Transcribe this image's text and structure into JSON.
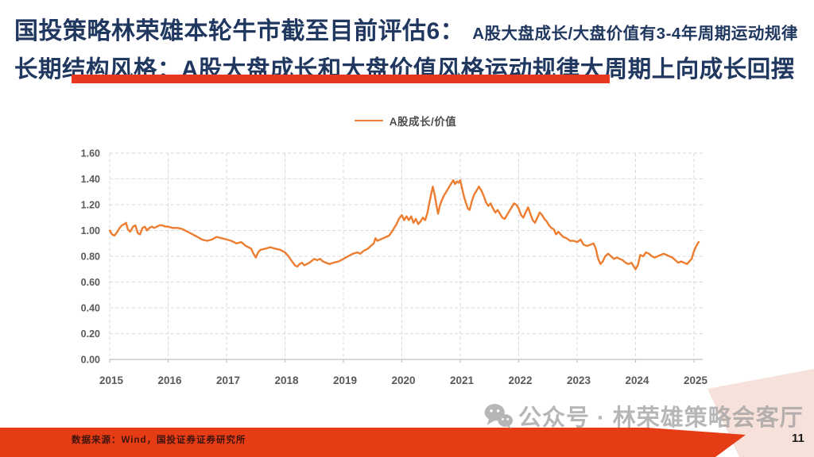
{
  "slide": {
    "title_line1_main": "国投策略林荣雄本轮牛市截至目前评估6：",
    "title_line1_sub": "A股大盘成长/大盘价值有3-4年周期运动规律",
    "title_line2": "长期结构风格：A股大盘成长和大盘价值风格运动规律大周期上向成长回摆",
    "footer_source": "数据来源：Wind，国投证券证券研究所",
    "watermark_text": "公众号 · 林荣雄策略会客厅",
    "page_number": "11",
    "colors": {
      "title_navy": "#20375F",
      "accent_red": "#E7371C",
      "footer_red": "#E63C16",
      "corner_pink": "#F6E2DB",
      "line_orange": "#ED7D31",
      "grid_gray": "#D9D9D9",
      "axis_gray": "#BFBFBF",
      "axis_label_gray": "#595959",
      "watermark_gray": "#9B9B9B"
    }
  },
  "chart_data": {
    "type": "line",
    "title": "",
    "xlabel": "",
    "ylabel": "",
    "grid": "dashed",
    "legend_position": "top-center",
    "legend": [
      {
        "label": "A股成长/价值",
        "color": "#ED7D31"
      }
    ],
    "xlim": [
      2015,
      2025
    ],
    "ylim": [
      0,
      1.6
    ],
    "x_ticks": [
      2015,
      2016,
      2017,
      2018,
      2019,
      2020,
      2021,
      2022,
      2023,
      2024,
      2025
    ],
    "y_ticks": [
      0,
      0.2,
      0.4,
      0.6,
      0.8,
      1.0,
      1.2,
      1.4,
      1.6
    ],
    "y_tick_format": "0.00",
    "series": [
      {
        "name": "A股成长/价值",
        "color": "#ED7D31",
        "points": [
          [
            2015.0,
            1.0
          ],
          [
            2015.04,
            0.97
          ],
          [
            2015.08,
            0.96
          ],
          [
            2015.13,
            0.99
          ],
          [
            2015.17,
            1.02
          ],
          [
            2015.21,
            1.04
          ],
          [
            2015.25,
            1.05
          ],
          [
            2015.28,
            1.06
          ],
          [
            2015.31,
            1.01
          ],
          [
            2015.35,
            0.99
          ],
          [
            2015.4,
            1.03
          ],
          [
            2015.44,
            1.04
          ],
          [
            2015.48,
            0.98
          ],
          [
            2015.52,
            0.97
          ],
          [
            2015.56,
            1.02
          ],
          [
            2015.6,
            1.03
          ],
          [
            2015.64,
            1.0
          ],
          [
            2015.68,
            1.02
          ],
          [
            2015.72,
            1.03
          ],
          [
            2015.76,
            1.02
          ],
          [
            2015.81,
            1.03
          ],
          [
            2015.85,
            1.04
          ],
          [
            2015.9,
            1.04
          ],
          [
            2015.95,
            1.03
          ],
          [
            2016.0,
            1.03
          ],
          [
            2016.08,
            1.02
          ],
          [
            2016.17,
            1.02
          ],
          [
            2016.25,
            1.01
          ],
          [
            2016.33,
            0.99
          ],
          [
            2016.42,
            0.97
          ],
          [
            2016.5,
            0.95
          ],
          [
            2016.58,
            0.93
          ],
          [
            2016.67,
            0.92
          ],
          [
            2016.75,
            0.93
          ],
          [
            2016.83,
            0.95
          ],
          [
            2016.92,
            0.94
          ],
          [
            2017.0,
            0.93
          ],
          [
            2017.08,
            0.92
          ],
          [
            2017.17,
            0.9
          ],
          [
            2017.25,
            0.91
          ],
          [
            2017.33,
            0.88
          ],
          [
            2017.42,
            0.86
          ],
          [
            2017.46,
            0.82
          ],
          [
            2017.5,
            0.79
          ],
          [
            2017.54,
            0.83
          ],
          [
            2017.58,
            0.85
          ],
          [
            2017.67,
            0.86
          ],
          [
            2017.75,
            0.87
          ],
          [
            2017.83,
            0.86
          ],
          [
            2017.92,
            0.85
          ],
          [
            2018.0,
            0.83
          ],
          [
            2018.06,
            0.8
          ],
          [
            2018.12,
            0.76
          ],
          [
            2018.17,
            0.73
          ],
          [
            2018.21,
            0.72
          ],
          [
            2018.25,
            0.74
          ],
          [
            2018.29,
            0.75
          ],
          [
            2018.33,
            0.73
          ],
          [
            2018.42,
            0.75
          ],
          [
            2018.5,
            0.78
          ],
          [
            2018.55,
            0.77
          ],
          [
            2018.6,
            0.78
          ],
          [
            2018.65,
            0.76
          ],
          [
            2018.7,
            0.75
          ],
          [
            2018.76,
            0.74
          ],
          [
            2018.83,
            0.75
          ],
          [
            2018.92,
            0.76
          ],
          [
            2019.0,
            0.78
          ],
          [
            2019.08,
            0.8
          ],
          [
            2019.16,
            0.82
          ],
          [
            2019.24,
            0.83
          ],
          [
            2019.29,
            0.82
          ],
          [
            2019.34,
            0.84
          ],
          [
            2019.42,
            0.86
          ],
          [
            2019.47,
            0.88
          ],
          [
            2019.52,
            0.9
          ],
          [
            2019.55,
            0.94
          ],
          [
            2019.58,
            0.92
          ],
          [
            2019.63,
            0.93
          ],
          [
            2019.68,
            0.94
          ],
          [
            2019.73,
            0.95
          ],
          [
            2019.78,
            0.96
          ],
          [
            2019.83,
            0.99
          ],
          [
            2019.87,
            1.02
          ],
          [
            2019.91,
            1.05
          ],
          [
            2019.95,
            1.09
          ],
          [
            2020.0,
            1.12
          ],
          [
            2020.04,
            1.08
          ],
          [
            2020.08,
            1.11
          ],
          [
            2020.12,
            1.08
          ],
          [
            2020.16,
            1.11
          ],
          [
            2020.2,
            1.06
          ],
          [
            2020.24,
            1.09
          ],
          [
            2020.28,
            1.05
          ],
          [
            2020.32,
            1.07
          ],
          [
            2020.36,
            1.1
          ],
          [
            2020.4,
            1.08
          ],
          [
            2020.44,
            1.14
          ],
          [
            2020.47,
            1.21
          ],
          [
            2020.5,
            1.28
          ],
          [
            2020.53,
            1.34
          ],
          [
            2020.56,
            1.28
          ],
          [
            2020.59,
            1.2
          ],
          [
            2020.62,
            1.13
          ],
          [
            2020.65,
            1.19
          ],
          [
            2020.68,
            1.23
          ],
          [
            2020.72,
            1.27
          ],
          [
            2020.76,
            1.3
          ],
          [
            2020.8,
            1.33
          ],
          [
            2020.84,
            1.36
          ],
          [
            2020.88,
            1.39
          ],
          [
            2020.91,
            1.36
          ],
          [
            2020.94,
            1.38
          ],
          [
            2020.97,
            1.37
          ],
          [
            2021.0,
            1.39
          ],
          [
            2021.03,
            1.33
          ],
          [
            2021.06,
            1.27
          ],
          [
            2021.1,
            1.21
          ],
          [
            2021.13,
            1.17
          ],
          [
            2021.16,
            1.16
          ],
          [
            2021.2,
            1.23
          ],
          [
            2021.24,
            1.28
          ],
          [
            2021.28,
            1.31
          ],
          [
            2021.32,
            1.34
          ],
          [
            2021.36,
            1.31
          ],
          [
            2021.4,
            1.27
          ],
          [
            2021.44,
            1.22
          ],
          [
            2021.48,
            1.19
          ],
          [
            2021.52,
            1.21
          ],
          [
            2021.56,
            1.17
          ],
          [
            2021.6,
            1.14
          ],
          [
            2021.64,
            1.16
          ],
          [
            2021.68,
            1.13
          ],
          [
            2021.72,
            1.1
          ],
          [
            2021.76,
            1.09
          ],
          [
            2021.8,
            1.12
          ],
          [
            2021.84,
            1.15
          ],
          [
            2021.88,
            1.18
          ],
          [
            2021.92,
            1.21
          ],
          [
            2021.96,
            1.2
          ],
          [
            2022.0,
            1.17
          ],
          [
            2022.04,
            1.12
          ],
          [
            2022.08,
            1.1
          ],
          [
            2022.12,
            1.14
          ],
          [
            2022.16,
            1.18
          ],
          [
            2022.2,
            1.13
          ],
          [
            2022.24,
            1.08
          ],
          [
            2022.28,
            1.06
          ],
          [
            2022.32,
            1.1
          ],
          [
            2022.36,
            1.14
          ],
          [
            2022.4,
            1.12
          ],
          [
            2022.44,
            1.09
          ],
          [
            2022.48,
            1.07
          ],
          [
            2022.52,
            1.04
          ],
          [
            2022.56,
            1.02
          ],
          [
            2022.6,
            1.01
          ],
          [
            2022.64,
            0.97
          ],
          [
            2022.68,
            0.99
          ],
          [
            2022.72,
            0.97
          ],
          [
            2022.76,
            0.95
          ],
          [
            2022.82,
            0.94
          ],
          [
            2022.88,
            0.92
          ],
          [
            2022.94,
            0.92
          ],
          [
            2023.0,
            0.91
          ],
          [
            2023.06,
            0.93
          ],
          [
            2023.11,
            0.89
          ],
          [
            2023.17,
            0.88
          ],
          [
            2023.23,
            0.89
          ],
          [
            2023.28,
            0.9
          ],
          [
            2023.32,
            0.86
          ],
          [
            2023.36,
            0.78
          ],
          [
            2023.4,
            0.74
          ],
          [
            2023.44,
            0.76
          ],
          [
            2023.48,
            0.8
          ],
          [
            2023.53,
            0.82
          ],
          [
            2023.58,
            0.8
          ],
          [
            2023.63,
            0.78
          ],
          [
            2023.68,
            0.79
          ],
          [
            2023.73,
            0.78
          ],
          [
            2023.78,
            0.77
          ],
          [
            2023.83,
            0.75
          ],
          [
            2023.88,
            0.74
          ],
          [
            2023.93,
            0.75
          ],
          [
            2023.97,
            0.72
          ],
          [
            2024.0,
            0.7
          ],
          [
            2024.04,
            0.73
          ],
          [
            2024.08,
            0.81
          ],
          [
            2024.13,
            0.8
          ],
          [
            2024.18,
            0.83
          ],
          [
            2024.23,
            0.82
          ],
          [
            2024.28,
            0.8
          ],
          [
            2024.33,
            0.79
          ],
          [
            2024.38,
            0.8
          ],
          [
            2024.43,
            0.81
          ],
          [
            2024.48,
            0.82
          ],
          [
            2024.53,
            0.81
          ],
          [
            2024.58,
            0.8
          ],
          [
            2024.63,
            0.79
          ],
          [
            2024.68,
            0.77
          ],
          [
            2024.73,
            0.75
          ],
          [
            2024.78,
            0.76
          ],
          [
            2024.83,
            0.75
          ],
          [
            2024.88,
            0.74
          ],
          [
            2024.92,
            0.76
          ],
          [
            2024.96,
            0.78
          ],
          [
            2025.0,
            0.84
          ],
          [
            2025.04,
            0.88
          ],
          [
            2025.08,
            0.91
          ]
        ]
      }
    ]
  }
}
